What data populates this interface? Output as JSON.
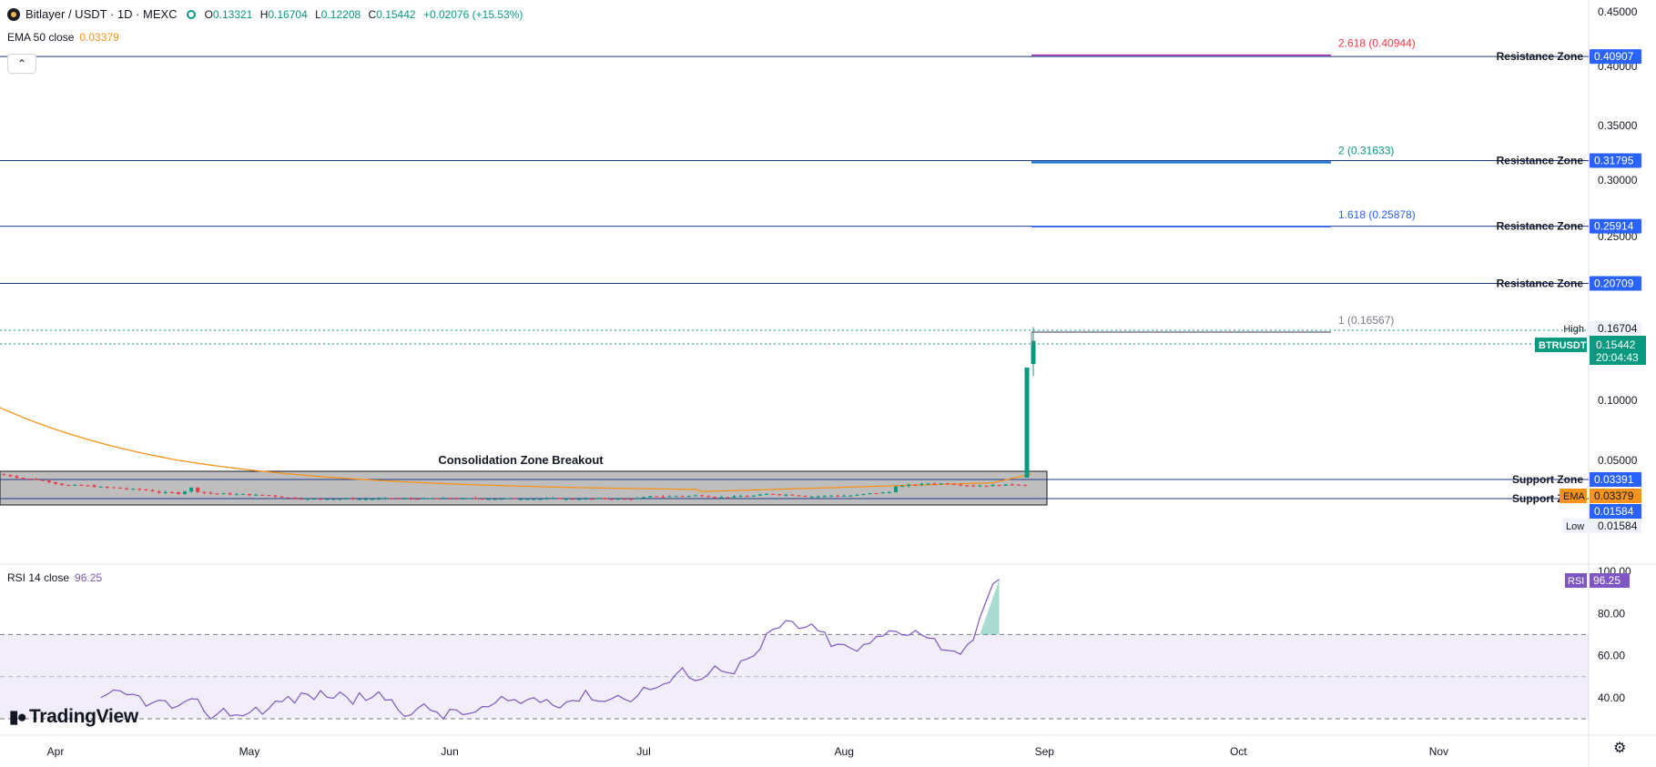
{
  "header": {
    "symbol": "Bitlayer / USDT · 1D · MEXC",
    "open_label": "O",
    "open": "0.13321",
    "high_label": "H",
    "high": "0.16704",
    "low_label": "L",
    "low": "0.12208",
    "close_label": "C",
    "close": "0.15442",
    "change": "+0.02076 (+15.53%)"
  },
  "ema_legend": {
    "label": "EMA 50 close",
    "value": "0.03379"
  },
  "rsi_legend": {
    "label": "RSI 14 close",
    "value": "96.25"
  },
  "collapse_icon": "chevron-up-icon",
  "brand": "TradingView",
  "colors": {
    "up": "#089981",
    "down": "#f23645",
    "ema": "#f7931a",
    "rsi": "#7e57c2",
    "zone_line": "#1e3a8a",
    "zone_label_bg": "#2962ff",
    "fib_red": "#f23645",
    "fib_green": "#089981",
    "fib_blue": "#2962ff",
    "fib_gray": "#787b86"
  },
  "chart_data": {
    "type": "candlestick",
    "price_axis": {
      "ticks": [
        "0.45000",
        "0.40000",
        "0.35000",
        "0.30000",
        "0.25000",
        "0.10000",
        "0.05000"
      ],
      "hidden_ticks": [
        "0.20000",
        "0.15000"
      ]
    },
    "time_axis": {
      "ticks": [
        "Apr",
        "May",
        "Jun",
        "Jul",
        "Aug",
        "Sep",
        "Oct",
        "Nov"
      ]
    },
    "resistance_zones": [
      {
        "label": "Resistance Zone",
        "value": "0.40907"
      },
      {
        "label": "Resistance Zone",
        "value": "0.31795"
      },
      {
        "label": "Resistance Zone",
        "value": "0.25914"
      },
      {
        "label": "Resistance Zone",
        "value": "0.20709"
      }
    ],
    "support_zones": [
      {
        "label": "Support Zone",
        "value": "0.03391"
      },
      {
        "label": "Support Zone",
        "value": "0.01584"
      }
    ],
    "fib_levels": [
      {
        "label": "2.618 (0.40944)",
        "value": 0.40944
      },
      {
        "label": "2 (0.31633)",
        "value": 0.31633
      },
      {
        "label": "1.618 (0.25878)",
        "value": 0.25878
      },
      {
        "label": "1 (0.16567)",
        "value": 0.16567
      }
    ],
    "high": {
      "label": "High",
      "value": "0.16704"
    },
    "low": {
      "label": "Low",
      "value": "0.01584"
    },
    "last_price": {
      "symbol": "BTRUSDT",
      "value": "0.15442",
      "countdown": "20:04:43"
    },
    "ema_tag": {
      "label": "EMA",
      "value": "0.03379"
    },
    "annotation": "Consolidation Zone Breakout",
    "ema50_start": 0.095,
    "rsi": {
      "ticks": [
        "100.00",
        "80.00",
        "60.00",
        "40.00"
      ],
      "tag_label": "RSI",
      "last": "96.25",
      "upper_band": 70,
      "middle_band": 50,
      "lower_band": 30
    }
  }
}
